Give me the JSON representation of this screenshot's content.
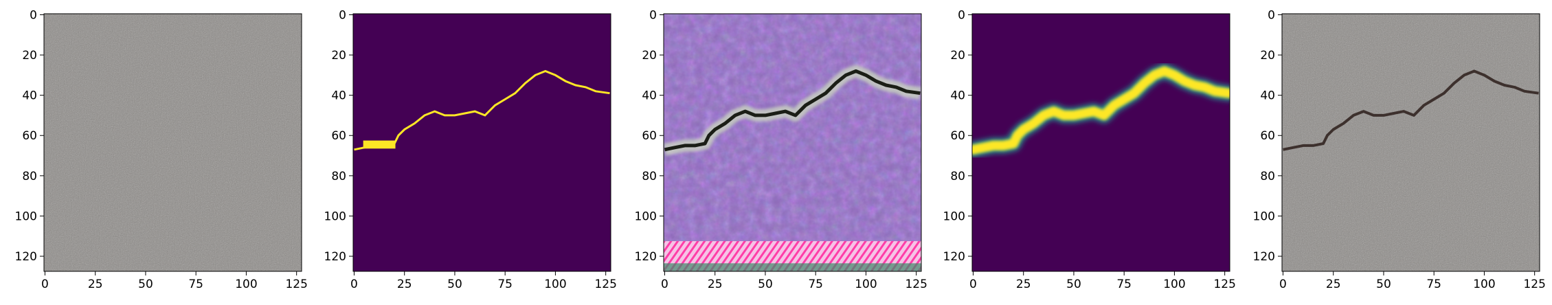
{
  "chart_data": [
    {
      "type": "image",
      "content": "grayscale asphalt texture without visible crack",
      "xticks": [
        0,
        25,
        50,
        75,
        100,
        125
      ],
      "yticks": [
        0,
        20,
        40,
        60,
        80,
        100,
        120
      ],
      "xlim": [
        -0.5,
        127.5
      ],
      "ylim": [
        127.5,
        -0.5
      ]
    },
    {
      "type": "image",
      "content": "thin binary crack mask (yellow on purple)",
      "xticks": [
        0,
        25,
        50,
        75,
        100,
        125
      ],
      "yticks": [
        0,
        20,
        40,
        60,
        80,
        100,
        120
      ],
      "xlim": [
        -0.5,
        127.5
      ],
      "ylim": [
        127.5,
        -0.5
      ]
    },
    {
      "type": "image",
      "content": "purple-tinted generated crack texture with pink banding at bottom",
      "xticks": [
        0,
        25,
        50,
        75,
        100,
        125
      ],
      "yticks": [
        0,
        20,
        40,
        60,
        80,
        100,
        120
      ],
      "xlim": [
        -0.5,
        127.5
      ],
      "ylim": [
        127.5,
        -0.5
      ]
    },
    {
      "type": "image",
      "content": "thick blurred crack mask (yellow with cyan edges on purple)",
      "xticks": [
        0,
        25,
        50,
        75,
        100,
        125
      ],
      "yticks": [
        0,
        20,
        40,
        60,
        80,
        100,
        120
      ],
      "xlim": [
        -0.5,
        127.5
      ],
      "ylim": [
        127.5,
        -0.5
      ]
    },
    {
      "type": "image",
      "content": "asphalt texture with synthesized crack",
      "xticks": [
        0,
        25,
        50,
        75,
        100,
        125
      ],
      "yticks": [
        0,
        20,
        40,
        60,
        80,
        100,
        120
      ],
      "xlim": [
        -0.5,
        127.5
      ],
      "ylim": [
        127.5,
        -0.5
      ]
    }
  ],
  "crack_path": [
    [
      0,
      67
    ],
    [
      5,
      66
    ],
    [
      10,
      65
    ],
    [
      15,
      65
    ],
    [
      20,
      64
    ],
    [
      22,
      60
    ],
    [
      25,
      57
    ],
    [
      30,
      54
    ],
    [
      35,
      50
    ],
    [
      40,
      48
    ],
    [
      45,
      50
    ],
    [
      50,
      50
    ],
    [
      55,
      49
    ],
    [
      60,
      48
    ],
    [
      65,
      50
    ],
    [
      70,
      45
    ],
    [
      75,
      42
    ],
    [
      80,
      39
    ],
    [
      85,
      34
    ],
    [
      90,
      30
    ],
    [
      95,
      28
    ],
    [
      100,
      30
    ],
    [
      105,
      33
    ],
    [
      110,
      35
    ],
    [
      115,
      36
    ],
    [
      120,
      38
    ],
    [
      127,
      39
    ]
  ],
  "colors": {
    "mask_background": "#440154",
    "mask_foreground": "#fde725",
    "mask_edge": "#21918c",
    "asphalt": "#8d8a87",
    "generated_tint": "#8e6bb8",
    "artifact_pink": "#ff3da8"
  }
}
